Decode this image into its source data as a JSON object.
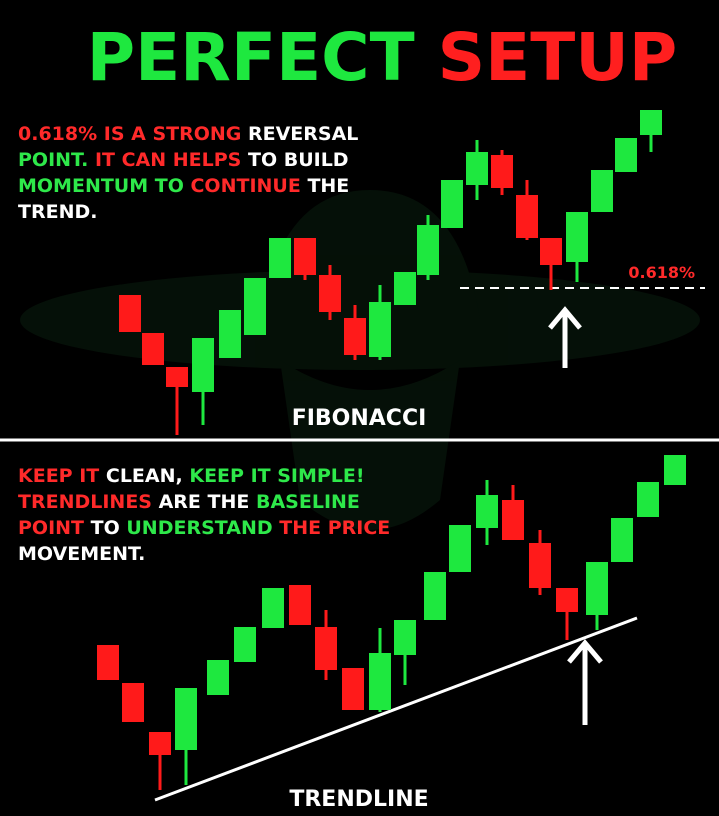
{
  "title": {
    "parts": [
      {
        "text": "PERFECT",
        "color": "#1ee83f"
      },
      {
        "text": " SETUP",
        "color": "#ff1f1f"
      }
    ]
  },
  "panels": [
    {
      "lines": [
        [
          {
            "text": "0.618% IS A STRONG",
            "color": "#ff2a2a"
          },
          {
            "text": " REVERSAL",
            "color": "#ffffff"
          }
        ],
        [
          {
            "text": "POINT.",
            "color": "#2ee84a"
          },
          {
            "text": " IT CAN HELPS",
            "color": "#ff2a2a"
          },
          {
            "text": " TO BUILD",
            "color": "#ffffff"
          }
        ],
        [
          {
            "text": "MOMENTUM TO",
            "color": "#2ee84a"
          },
          {
            "text": " CONTINUE",
            "color": "#ff2a2a"
          },
          {
            "text": " THE",
            "color": "#ffffff"
          }
        ],
        [
          {
            "text": "TREND.",
            "color": "#ffffff"
          }
        ]
      ],
      "level_label": "0.618%",
      "caption": "FIBONACCI"
    },
    {
      "lines": [
        [
          {
            "text": "KEEP IT",
            "color": "#ff2a2a"
          },
          {
            "text": " CLEAN,",
            "color": "#ffffff"
          },
          {
            "text": " KEEP IT SIMPLE!",
            "color": "#2ee84a"
          }
        ],
        [
          {
            "text": "TRENDLINES",
            "color": "#ff2a2a"
          },
          {
            "text": " ARE THE",
            "color": "#ffffff"
          },
          {
            "text": " BASELINE",
            "color": "#2ee84a"
          }
        ],
        [
          {
            "text": "POINT",
            "color": "#ff2a2a"
          },
          {
            "text": " TO",
            "color": "#ffffff"
          },
          {
            "text": " UNDERSTAND",
            "color": "#2ee84a"
          },
          {
            "text": " THE PRICE",
            "color": "#ff2a2a"
          }
        ],
        [
          {
            "text": "MOVEMENT.",
            "color": "#ffffff"
          }
        ]
      ],
      "caption": "TRENDLINE"
    }
  ]
}
